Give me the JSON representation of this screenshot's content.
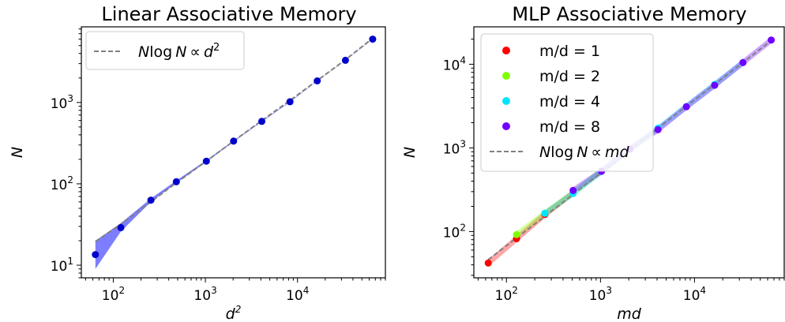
{
  "chart_data": [
    {
      "type": "scatter",
      "title": "Linear Associative Memory",
      "xlabel": "d²",
      "ylabel": "N",
      "xscale": "log",
      "yscale": "log",
      "xlim": [
        45,
        90000
      ],
      "ylim": [
        7,
        8500
      ],
      "xtick_labels": [
        "10²",
        "10³",
        "10⁴"
      ],
      "ytick_labels": [
        "10¹",
        "10²",
        "10³"
      ],
      "legend_position": "top-left",
      "grid": false,
      "series": [
        {
          "name": "",
          "color": "#0000cc",
          "band_color": "#6666ff",
          "x": [
            64,
            121,
            256,
            484,
            1024,
            2025,
            4096,
            8281,
            16384,
            33124,
            65536
          ],
          "y": [
            13.5,
            29,
            63,
            106,
            190,
            335,
            585,
            1020,
            1840,
            3300,
            6000
          ],
          "band_low": [
            9,
            26,
            60,
            102,
            186,
            330,
            578,
            1010,
            1830,
            3280,
            5960
          ],
          "band_high": [
            20,
            33,
            66,
            110,
            195,
            340,
            592,
            1030,
            1850,
            3320,
            6040
          ]
        }
      ],
      "reference_line": {
        "label": "N log N ∝ d²",
        "label_parts": [
          "N",
          "log",
          "N",
          "∝",
          "d",
          "2"
        ],
        "color": "#808080",
        "x": [
          64,
          121,
          256,
          484,
          1024,
          2025,
          4096,
          8281,
          16384,
          33124,
          65536
        ],
        "y": [
          19.5,
          32,
          60,
          103,
          190,
          335,
          600,
          1060,
          1860,
          3350,
          6150
        ]
      }
    },
    {
      "type": "scatter",
      "title": "MLP Associative Memory",
      "xlabel": "md",
      "ylabel": "N",
      "xscale": "log",
      "yscale": "log",
      "xlim": [
        45,
        90000
      ],
      "ylim": [
        28,
        28000
      ],
      "xtick_labels": [
        "10²",
        "10³",
        "10⁴"
      ],
      "ytick_labels": [
        "10²",
        "10³",
        "10⁴"
      ],
      "legend_position": "top-left",
      "grid": false,
      "series": [
        {
          "name": "m/d = 1",
          "color": "#ff0000",
          "x": [
            64,
            128,
            256,
            512
          ],
          "y": [
            42,
            82,
            160,
            290
          ]
        },
        {
          "name": "m/d = 2",
          "color": "#80ff00",
          "x": [
            128,
            256,
            512,
            1024
          ],
          "y": [
            92,
            165,
            290,
            530
          ]
        },
        {
          "name": "m/d = 4",
          "color": "#00e5ff",
          "x": [
            256,
            512,
            1024,
            2048,
            4096,
            8192,
            16384,
            32768
          ],
          "y": [
            165,
            285,
            525,
            960,
            1720,
            3120,
            5750,
            10500
          ]
        },
        {
          "name": "m/d = 8",
          "color": "#7000ff",
          "x": [
            512,
            1024,
            2048,
            4096,
            8192,
            16384,
            32768,
            65536
          ],
          "y": [
            310,
            525,
            970,
            1650,
            3100,
            5600,
            10500,
            19500
          ]
        }
      ],
      "reference_line": {
        "label": "N log N ∝ md",
        "label_parts": [
          "N",
          "log",
          "N",
          "∝",
          "md"
        ],
        "color": "#808080",
        "x": [
          64,
          128,
          256,
          512,
          1024,
          2048,
          4096,
          8192,
          16384,
          32768,
          65536
        ],
        "y": [
          46,
          84,
          152,
          278,
          510,
          940,
          1720,
          3150,
          5750,
          10500,
          19200
        ]
      }
    }
  ]
}
